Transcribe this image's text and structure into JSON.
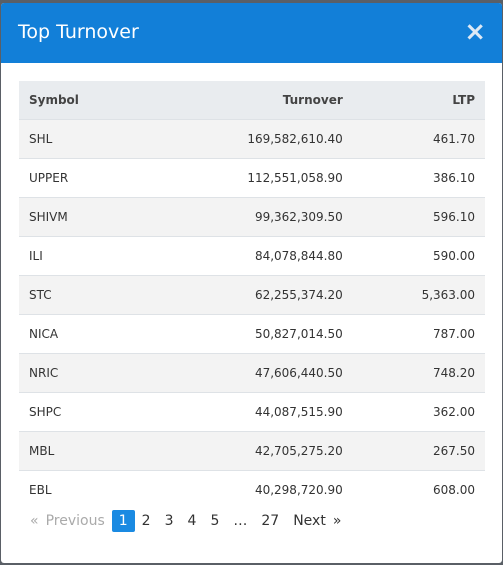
{
  "header": {
    "title": "Top Turnover",
    "close": "×"
  },
  "table": {
    "columns": [
      "Symbol",
      "Turnover",
      "LTP"
    ],
    "rows": [
      [
        "SHL",
        "169,582,610.40",
        "461.70"
      ],
      [
        "UPPER",
        "112,551,058.90",
        "386.10"
      ],
      [
        "SHIVM",
        "99,362,309.50",
        "596.10"
      ],
      [
        "ILI",
        "84,078,844.80",
        "590.00"
      ],
      [
        "STC",
        "62,255,374.20",
        "5,363.00"
      ],
      [
        "NICA",
        "50,827,014.50",
        "787.00"
      ],
      [
        "NRIC",
        "47,606,440.50",
        "748.20"
      ],
      [
        "SHPC",
        "44,087,515.90",
        "362.00"
      ],
      [
        "MBL",
        "42,705,275.20",
        "267.50"
      ],
      [
        "EBL",
        "40,298,720.90",
        "608.00"
      ]
    ]
  },
  "pagination": {
    "prev_icon": "«",
    "prev": "Previous",
    "pages": [
      "1",
      "2",
      "3",
      "4",
      "5",
      "…",
      "27"
    ],
    "active": 0,
    "next": "Next",
    "next_icon": "»"
  }
}
